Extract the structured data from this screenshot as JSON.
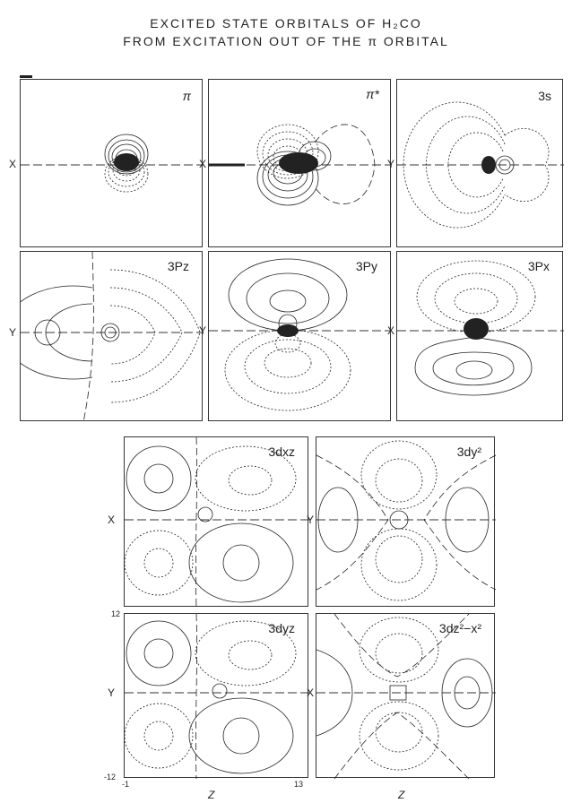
{
  "title": {
    "line1": "EXCITED STATE ORBITALS OF H₂CO",
    "line2": "FROM EXCITATION OUT OF THE π ORBITAL"
  },
  "panels": [
    {
      "label": "π",
      "axis": "X"
    },
    {
      "label": "π*",
      "axis": "X"
    },
    {
      "label": "3s",
      "axis": "Y"
    },
    {
      "label": "3Pz",
      "axis": "Y"
    },
    {
      "label": "3Py",
      "axis": "Y"
    },
    {
      "label": "3Px",
      "axis": "X"
    },
    {
      "label": "3dxz",
      "axis": "X"
    },
    {
      "label": "3dy²",
      "axis": "Y"
    },
    {
      "label": "3dyz",
      "axis": "Y"
    },
    {
      "label": "3dz²−x²",
      "axis": "X"
    }
  ],
  "ticks": {
    "y_top": "12",
    "y_bottom": "-12",
    "x_left": "-1",
    "x_right": "13"
  },
  "bottom_labels": [
    "Z",
    "Z"
  ]
}
